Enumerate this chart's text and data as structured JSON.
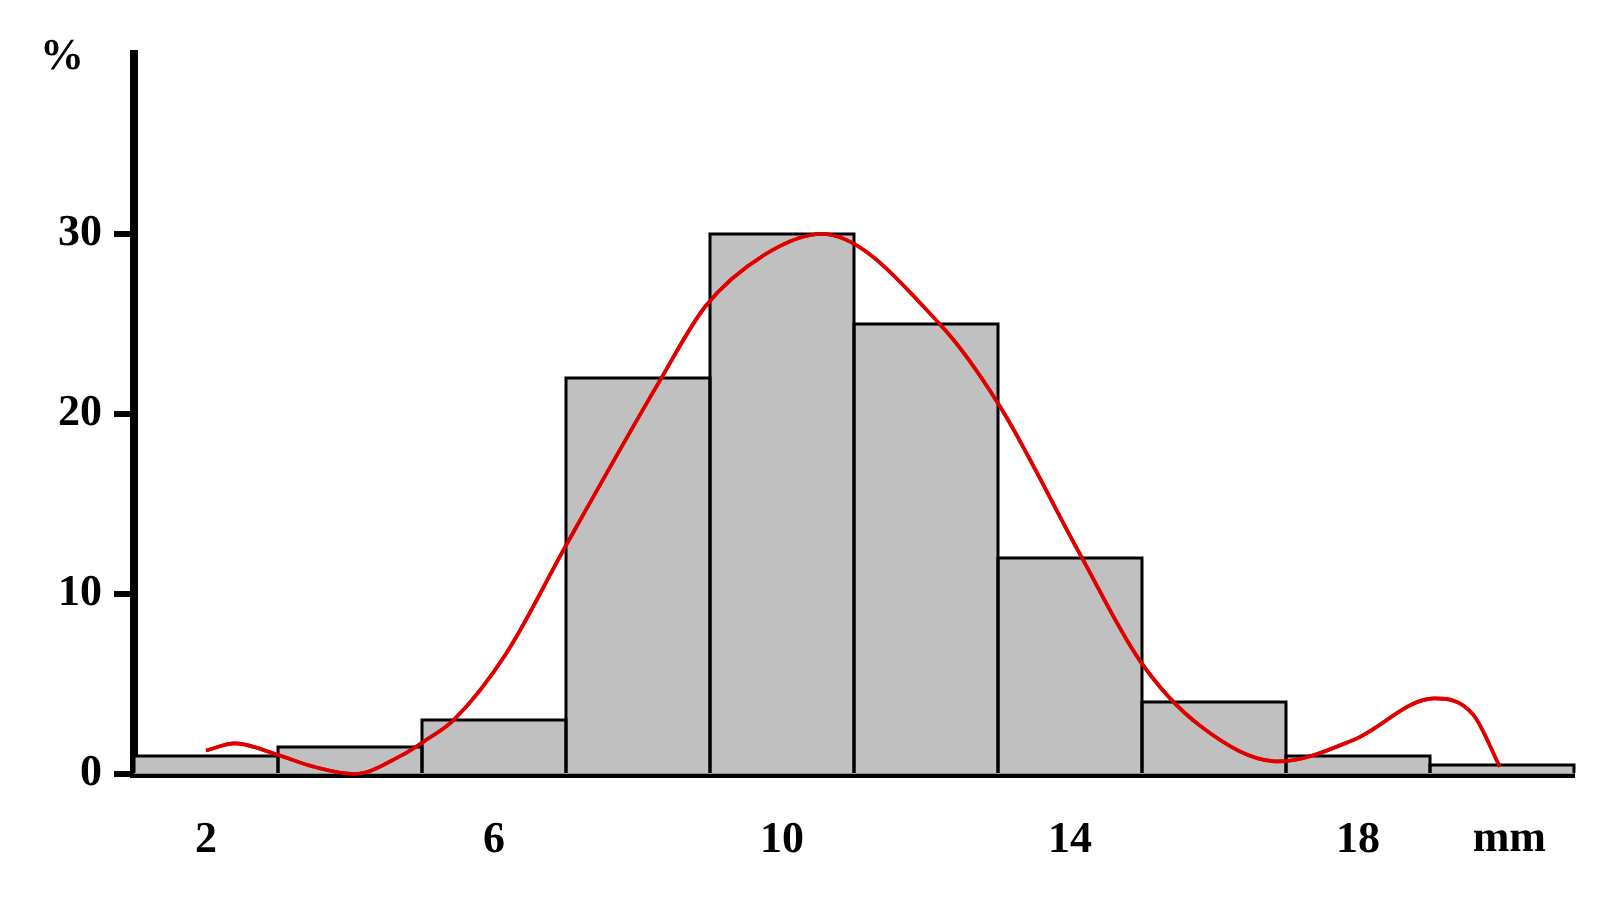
{
  "chart_data": {
    "type": "histogram",
    "xlabel": "mm",
    "ylabel": "%",
    "bins": [
      1,
      3,
      5,
      7,
      9,
      11,
      13,
      15,
      17,
      19,
      21
    ],
    "series": [
      {
        "color": "#c0c0c0",
        "values": [
          1,
          1.5,
          3,
          22,
          30,
          25,
          12,
          4,
          1,
          0.5
        ]
      },
      {
        "type": "line",
        "color": "#e00000",
        "marker": "none",
        "x": [
          2,
          2.4,
          2.97,
          3.5,
          4.06,
          4.7,
          5.06,
          5.44,
          6.17,
          7,
          8.31,
          8.94,
          9.78,
          10.55,
          12.19,
          13.03,
          14.14,
          14.97,
          15.8,
          16.9,
          17.94,
          19.06,
          19.6,
          19.97
        ],
        "values": [
          1.3,
          1.7,
          1.1,
          0.4,
          0,
          1,
          1.9,
          3,
          6.7,
          12.7,
          21.9,
          26,
          28.9,
          30,
          25,
          20.4,
          12.2,
          6.3,
          2.7,
          0.7,
          1.9,
          4.2,
          3.3,
          0.4
        ]
      }
    ],
    "xlim": [
      1,
      21
    ],
    "ylim": [
      0,
      40
    ],
    "xticks": [
      2,
      6,
      10,
      14,
      18
    ],
    "yticks": [
      0,
      10,
      20,
      30
    ],
    "grid": false,
    "legend": false
  }
}
